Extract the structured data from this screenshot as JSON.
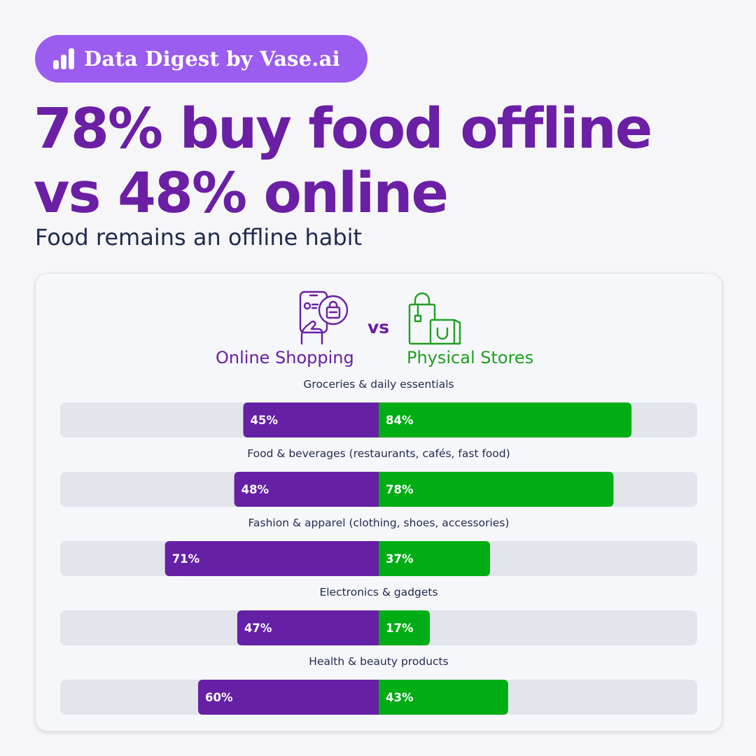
{
  "badge": {
    "text": "Data Digest by Vase.ai",
    "icon": "bar-chart-icon"
  },
  "headline": {
    "line1": "78% buy food offline",
    "line2": "vs 48% online"
  },
  "subtitle": "Food remains an offline habit",
  "legend": {
    "online": {
      "label": "Online Shopping",
      "icon": "smartphone-shopping-icon",
      "color": "#6a1fa5"
    },
    "vs": "vs",
    "physical": {
      "label": "Physical Stores",
      "icon": "shopping-bags-icon",
      "color": "#1fa01f"
    }
  },
  "colors": {
    "online_bar": "#6520a6",
    "physical_bar": "#00ad14",
    "track": "#e3e4ec",
    "headline": "#6a1fa5",
    "badge": "#9b5cf0"
  },
  "chart_data": {
    "type": "bar",
    "orientation": "horizontal-diverging",
    "categories": [
      "Groceries & daily essentials",
      "Food & beverages (restaurants, cafés, fast food)",
      "Fashion & apparel (clothing, shoes, accessories)",
      "Electronics & gadgets",
      "Health & beauty products"
    ],
    "series": [
      {
        "name": "Online Shopping",
        "direction": "left",
        "values": [
          45,
          48,
          71,
          47,
          60
        ],
        "labels": [
          "45%",
          "48%",
          "71%",
          "47%",
          "60%"
        ]
      },
      {
        "name": "Physical Stores",
        "direction": "right",
        "values": [
          84,
          78,
          37,
          17,
          43
        ],
        "labels": [
          "84%",
          "78%",
          "37%",
          "17%",
          "43%"
        ]
      }
    ],
    "value_unit": "%",
    "xlim": [
      0,
      100
    ],
    "grid": false
  }
}
